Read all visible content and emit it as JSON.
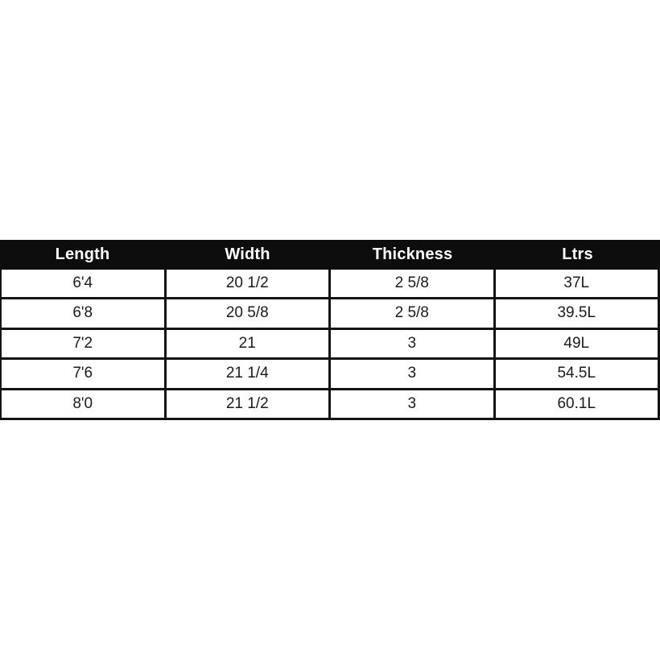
{
  "chart_data": {
    "type": "table",
    "title": "",
    "columns": [
      "Length",
      "Width",
      "Thickness",
      "Ltrs"
    ],
    "rows": [
      [
        "6'4",
        "20 1/2",
        "2 5/8",
        "37L"
      ],
      [
        "6'8",
        "20 5/8",
        "2 5/8",
        "39.5L"
      ],
      [
        "7'2",
        "21",
        "3",
        "49L"
      ],
      [
        "7'6",
        "21 1/4",
        "3",
        "54.5L"
      ],
      [
        "8'0",
        "21 1/2",
        "3",
        "60.1L"
      ]
    ],
    "layout": {
      "grid": "on",
      "header_style": "solid black bar, white bold centered text",
      "cell_alignment": "center"
    }
  },
  "colors": {
    "header_bg": "#0d0d0d",
    "header_text": "#ffffff",
    "border": "#141414",
    "row_bg": "#ffffff",
    "cell_text": "#1c1c1c",
    "page_bg": "#ffffff"
  }
}
